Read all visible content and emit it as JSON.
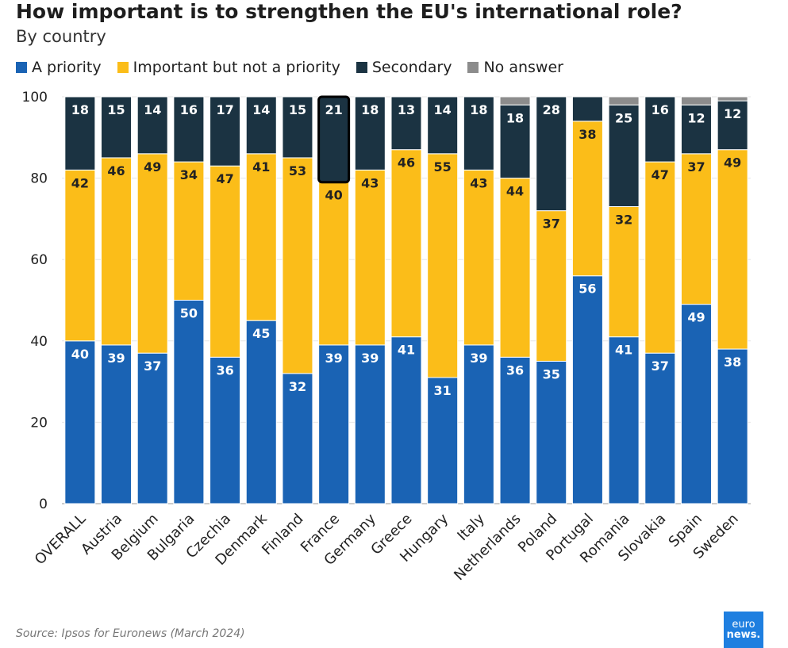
{
  "chart_data": {
    "type": "bar",
    "stacked": true,
    "title": "How important is to strengthen the EU's international role?",
    "subtitle": "By country",
    "categories": [
      "OVERALL",
      "Austria",
      "Belgium",
      "Bulgaria",
      "Czechia",
      "Denmark",
      "Finland",
      "France",
      "Germany",
      "Greece",
      "Hungary",
      "Italy",
      "Netherlands",
      "Poland",
      "Portugal",
      "Romania",
      "Slovakia",
      "Spain",
      "Sweden"
    ],
    "series": [
      {
        "name": "A priority",
        "color": "#1a63b4",
        "values": [
          40,
          39,
          37,
          50,
          36,
          45,
          32,
          39,
          39,
          41,
          31,
          39,
          36,
          35,
          56,
          41,
          37,
          49,
          38
        ]
      },
      {
        "name": "Important but not a priority",
        "color": "#fbbd19",
        "values": [
          42,
          46,
          49,
          34,
          47,
          41,
          53,
          40,
          43,
          46,
          55,
          43,
          44,
          37,
          38,
          32,
          47,
          37,
          49
        ]
      },
      {
        "name": "Secondary",
        "color": "#1b3342",
        "values": [
          18,
          15,
          14,
          16,
          17,
          14,
          15,
          21,
          18,
          13,
          14,
          18,
          18,
          28,
          6,
          25,
          16,
          12,
          12
        ]
      },
      {
        "name": "No answer",
        "color": "#8c8c8c",
        "values": [
          0,
          0,
          0,
          0,
          0,
          0,
          0,
          0,
          0,
          0,
          0,
          0,
          2,
          0,
          0,
          2,
          0,
          2,
          1
        ]
      }
    ],
    "labels": [
      [
        "40",
        "39",
        "37",
        "50",
        "36",
        "45",
        "32",
        "39",
        "39",
        "41",
        "31",
        "39",
        "36",
        "35",
        "56",
        "41",
        "37",
        "49",
        "38"
      ],
      [
        "42",
        "46",
        "49",
        "34",
        "47",
        "41",
        "53",
        "40",
        "43",
        "46",
        "55",
        "43",
        "44",
        "37",
        "38",
        "32",
        "47",
        "37",
        "49"
      ],
      [
        "18",
        "15",
        "14",
        "16",
        "17",
        "14",
        "15",
        "21",
        "18",
        "13",
        "14",
        "18",
        "18",
        "28",
        "",
        "25",
        "16",
        "12",
        "12"
      ],
      [
        "",
        "",
        "",
        "",
        "",
        "",
        "",
        "",
        "",
        "",
        "",
        "",
        "",
        "",
        "",
        "",
        "",
        "",
        ""
      ]
    ],
    "highlight_category": "France",
    "y_ticks": [
      0,
      20,
      40,
      60,
      80,
      100
    ],
    "ylim": [
      0,
      100
    ],
    "xlabel": "",
    "ylabel": "",
    "grid": true,
    "legend_position": "top-left"
  },
  "source": "Source: Ipsos for Euronews (March 2024)",
  "logo": {
    "line1": "euro",
    "line2": "news."
  }
}
